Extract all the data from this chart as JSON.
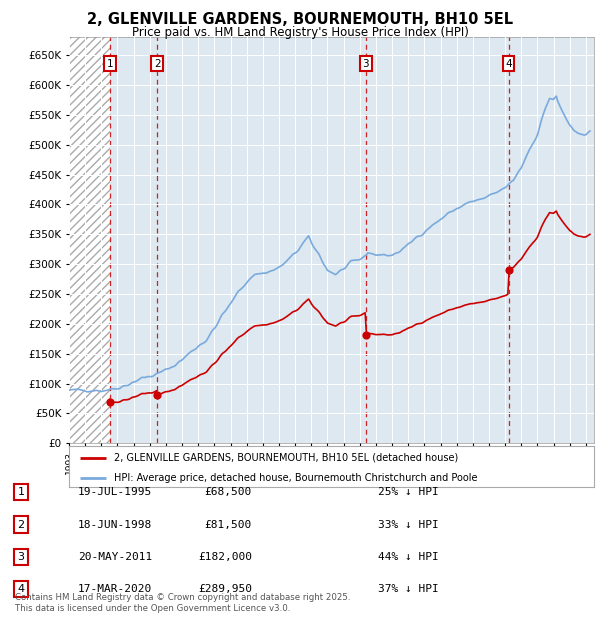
{
  "title": "2, GLENVILLE GARDENS, BOURNEMOUTH, BH10 5EL",
  "subtitle": "Price paid vs. HM Land Registry's House Price Index (HPI)",
  "background_color": "#ffffff",
  "chart_bg_color": "#dde8f0",
  "grid_color": "#ffffff",
  "sale_year_nums": [
    1995.547,
    1998.464,
    2011.383,
    2020.208
  ],
  "sale_prices": [
    68500,
    81500,
    182000,
    289950
  ],
  "sale_labels": [
    "1",
    "2",
    "3",
    "4"
  ],
  "sale_info": [
    {
      "label": "1",
      "date": "19-JUL-1995",
      "price": "£68,500",
      "pct": "25% ↓ HPI"
    },
    {
      "label": "2",
      "date": "18-JUN-1998",
      "price": "£81,500",
      "pct": "33% ↓ HPI"
    },
    {
      "label": "3",
      "date": "20-MAY-2011",
      "price": "£182,000",
      "pct": "44% ↓ HPI"
    },
    {
      "label": "4",
      "date": "17-MAR-2020",
      "price": "£289,950",
      "pct": "37% ↓ HPI"
    }
  ],
  "ylim": [
    0,
    680000
  ],
  "yticks": [
    0,
    50000,
    100000,
    150000,
    200000,
    250000,
    300000,
    350000,
    400000,
    450000,
    500000,
    550000,
    600000,
    650000
  ],
  "xlim_start": 1993.0,
  "xlim_end": 2025.5,
  "legend_red": "2, GLENVILLE GARDENS, BOURNEMOUTH, BH10 5EL (detached house)",
  "legend_blue": "HPI: Average price, detached house, Bournemouth Christchurch and Poole",
  "footer": "Contains HM Land Registry data © Crown copyright and database right 2025.\nThis data is licensed under the Open Government Licence v3.0.",
  "red_color": "#cc0000",
  "blue_color": "#7aaadd"
}
